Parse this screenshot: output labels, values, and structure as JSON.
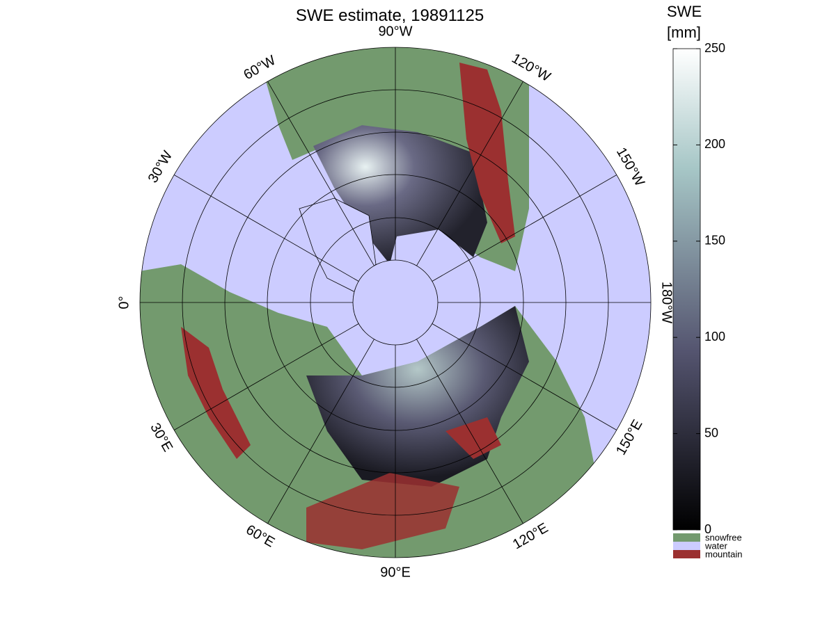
{
  "title": "SWE estimate, 19891125",
  "longitude_labels": [
    "90°W",
    "120°W",
    "150°W",
    "180°W",
    "150°E",
    "120°E",
    "90°E",
    "60°E",
    "30°E",
    "0°",
    "30°W",
    "60°W"
  ],
  "colorbar": {
    "title": [
      "SWE",
      "[mm]"
    ],
    "lim": [
      0,
      250
    ],
    "ticks": [
      0,
      50,
      100,
      150,
      200,
      250
    ]
  },
  "legend": [
    {
      "label": "snowfree",
      "color": "#739a6e"
    },
    {
      "label": "water",
      "color": "#ccccff"
    },
    {
      "label": "mountain",
      "color": "#9b3030"
    }
  ]
}
